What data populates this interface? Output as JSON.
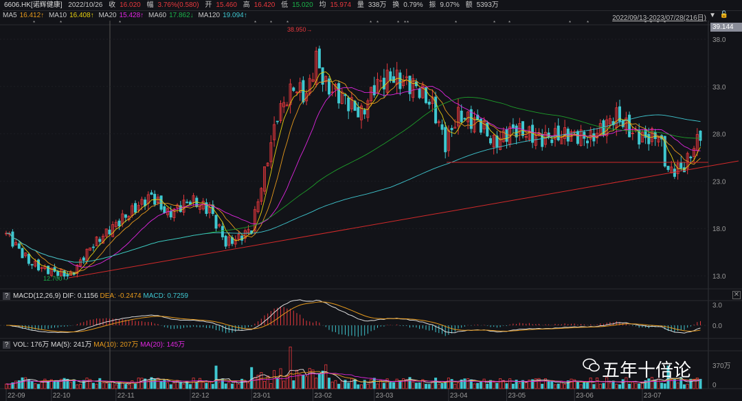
{
  "header": {
    "symbol": "6606.HK[诺辉健康]",
    "date": "2022/10/26",
    "close_label": "收",
    "close": "16.020",
    "chg_label": "幅",
    "chg": "3.76%(0.580)",
    "open_label": "开",
    "open": "15.460",
    "high_label": "高",
    "high": "16.420",
    "low_label": "低",
    "low": "15.020",
    "avg_label": "均",
    "avg": "15.974",
    "vol_label": "量",
    "vol": "338万",
    "turn_label": "换",
    "turn": "0.79%",
    "amp_label": "振",
    "amp": "9.07%",
    "amt_label": "额",
    "amt": "5393万"
  },
  "ma": {
    "ma5": "MA5",
    "ma5v": "16.412↑",
    "ma10": "MA10",
    "ma10v": "16.408↑",
    "ma20": "MA20",
    "ma20v": "15.428↑",
    "ma60": "MA60",
    "ma60v": "17.862↓",
    "ma120": "MA120",
    "ma120v": "19.094↑"
  },
  "range": "2022/09/13-2023/07/28(216日)",
  "last_price": "39.144",
  "macd": {
    "help": "?",
    "title": "MACD(12,26,9)",
    "dif": "DIF: 0.1156",
    "dea": "DEA: -0.2474",
    "macd": "MACD: 0.7259",
    "ticks": [
      "3.0",
      "0.0"
    ]
  },
  "vol": {
    "help": "?",
    "title": "VOL: 176万",
    "ma5": "MA(5): 241万",
    "ma10": "MA(10): 207万",
    "ma20": "MA(20): 145万",
    "ticks": [
      "370万",
      "0"
    ]
  },
  "watermark": "五年十倍论",
  "colors": {
    "up": "#e8383d",
    "down": "#3fc7d0",
    "ma5": "#e8d10f",
    "ma10": "#e79a1c",
    "ma20": "#e026e0",
    "ma60": "#1e9e2a",
    "ma120": "#3fc7d0"
  },
  "chart_data": {
    "type": "candlestick",
    "title": "6606.HK 诺辉健康 日K",
    "y_ticks": [
      "38.0",
      "33.0",
      "28.0",
      "23.0",
      "18.0",
      "13.0"
    ],
    "ylim": [
      11.5,
      40
    ],
    "x_labels": [
      "22-09",
      "22-10",
      "22-11",
      "22-12",
      "23-01",
      "23-02",
      "23-03",
      "23-04",
      "23-05",
      "23-06",
      "23-07"
    ],
    "x_label_days": [
      0,
      14,
      34,
      57,
      76,
      95,
      114,
      137,
      155,
      176,
      197
    ],
    "annotations": {
      "max": "38.950→",
      "min": "12.700→"
    },
    "close_keypoints": [
      [
        0,
        17.5
      ],
      [
        7,
        14.5
      ],
      [
        11,
        13.8
      ],
      [
        20,
        13.0
      ],
      [
        26,
        16
      ],
      [
        34,
        18.5
      ],
      [
        45,
        21.5
      ],
      [
        50,
        19.5
      ],
      [
        57,
        21
      ],
      [
        63,
        20
      ],
      [
        68,
        16.5
      ],
      [
        72,
        17
      ],
      [
        76,
        18
      ],
      [
        80,
        24
      ],
      [
        84,
        30
      ],
      [
        89,
        33
      ],
      [
        93,
        32
      ],
      [
        96,
        36
      ],
      [
        99,
        33
      ],
      [
        104,
        32
      ],
      [
        110,
        30
      ],
      [
        114,
        33
      ],
      [
        119,
        34
      ],
      [
        127,
        33
      ],
      [
        132,
        31
      ],
      [
        136,
        27
      ],
      [
        140,
        30
      ],
      [
        147,
        29
      ],
      [
        151,
        27
      ],
      [
        157,
        28.5
      ],
      [
        166,
        27.5
      ],
      [
        174,
        28
      ],
      [
        181,
        27.5
      ],
      [
        189,
        30
      ],
      [
        194,
        28
      ],
      [
        198,
        27.5
      ],
      [
        202,
        28
      ],
      [
        205,
        24
      ],
      [
        210,
        24.5
      ],
      [
        215,
        28
      ]
    ]
  }
}
